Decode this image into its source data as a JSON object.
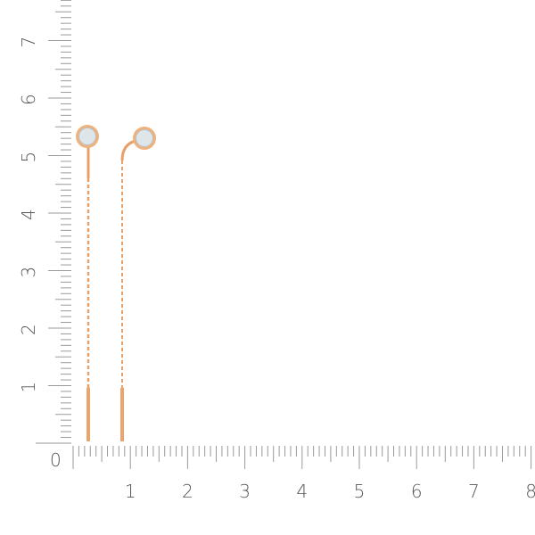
{
  "ruler": {
    "origin_label": "0",
    "vertical_labels": [
      "1",
      "2",
      "3",
      "4",
      "5",
      "6",
      "7"
    ],
    "horizontal_labels": [
      "1",
      "2",
      "3",
      "4",
      "5",
      "6",
      "7",
      "8"
    ],
    "tick_color": "#9a9a9a",
    "label_color": "#555555"
  },
  "product": {
    "metal_color": "#e8a06a",
    "stone_color": "#dfe6ea"
  }
}
